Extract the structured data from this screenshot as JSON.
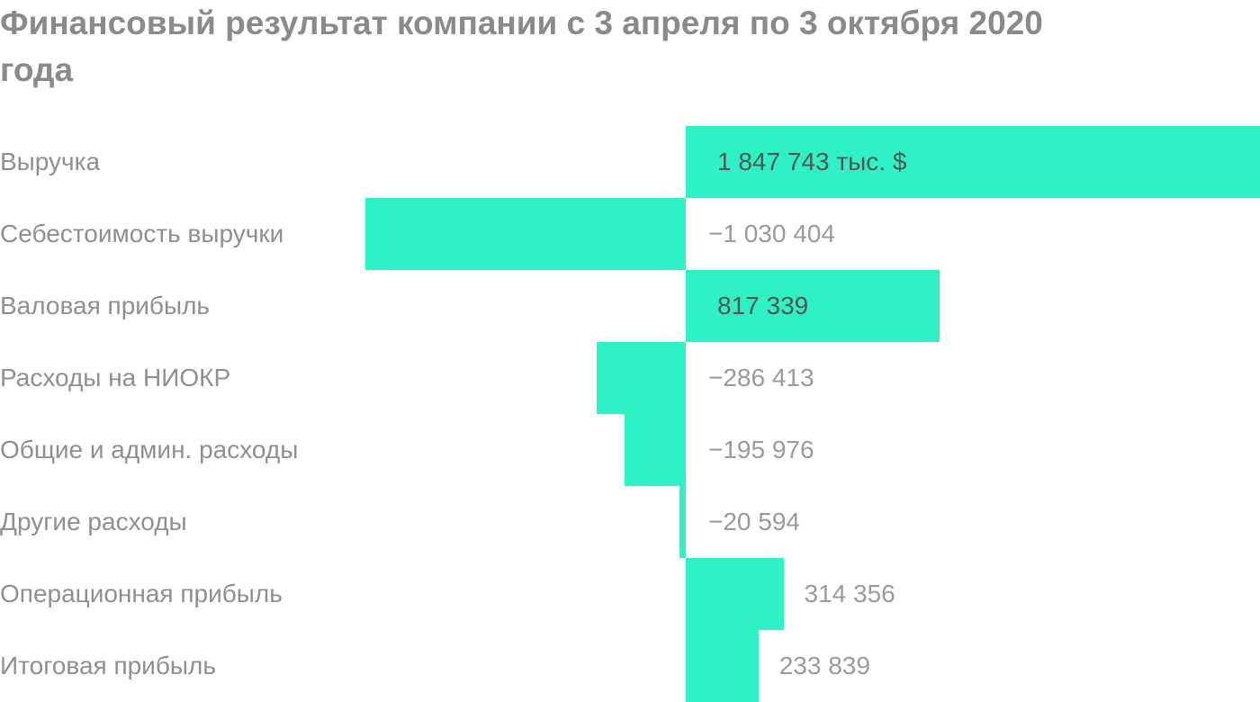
{
  "title": "Финансовый результат компании с 3 апреля по 3 октября 2020 года",
  "colors": {
    "bar": "#2ff2c4",
    "title": "#8a8a8a",
    "label": "#8f8f8f",
    "value_inside": "#555555",
    "value_outside": "#9a9a9a"
  },
  "chart_data": {
    "type": "bar",
    "orientation": "horizontal",
    "title": "Финансовый результат компании с 3 апреля по 3 октября 2020 года",
    "unit": "тыс. $",
    "categories": [
      "Выручка",
      "Себестоимость выручки",
      "Валовая прибыль",
      "Расходы на НИОКР",
      "Общие и админ. расходы",
      "Другие расходы",
      "Операционная прибыль",
      "Итоговая прибыль"
    ],
    "values": [
      1847743,
      -1030404,
      817339,
      -286413,
      -195976,
      -20594,
      314356,
      233839
    ],
    "value_labels": [
      "1 847 743 тыс. $",
      "−1 030 404",
      "817 339",
      "−286 413",
      "−195 976",
      "−20 594",
      "314 356",
      "233 839"
    ],
    "grid": false,
    "legend": "none"
  }
}
